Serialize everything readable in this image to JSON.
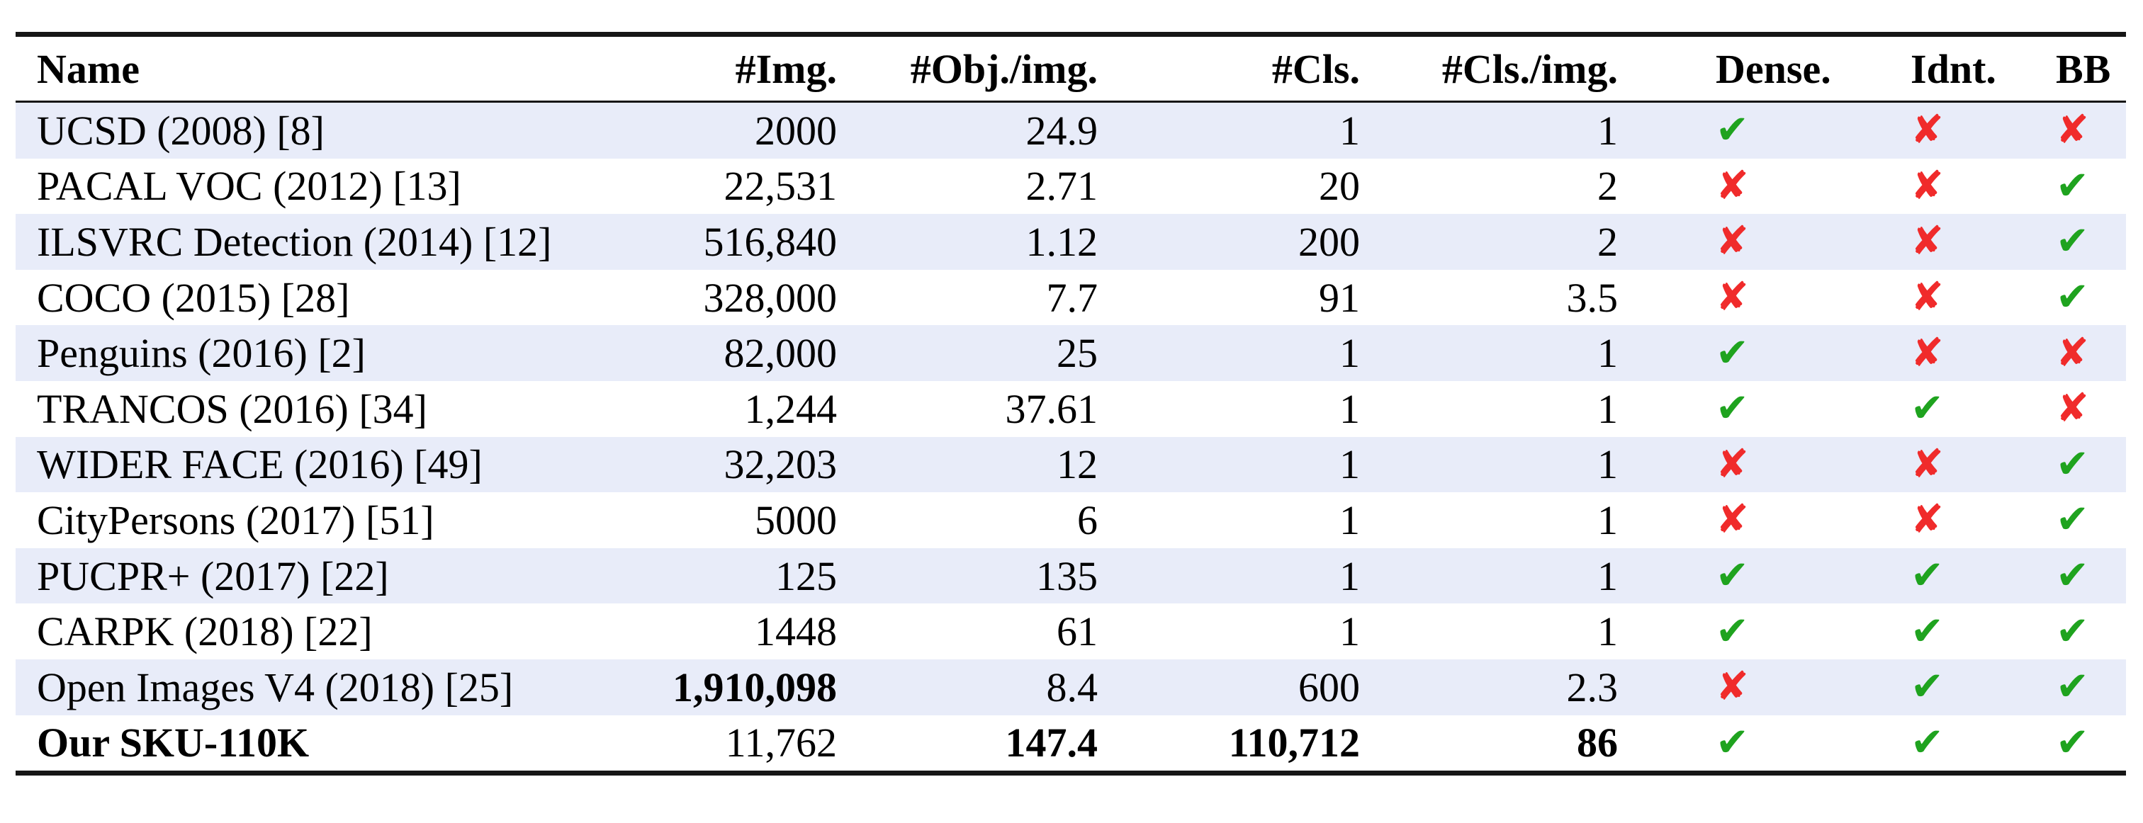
{
  "table": {
    "columns": [
      {
        "id": "name",
        "label": "Name",
        "align": "al"
      },
      {
        "id": "img",
        "label": "#Img.",
        "align": "ar"
      },
      {
        "id": "obj-per-img",
        "label": "#Obj./img.",
        "align": "ar"
      },
      {
        "id": "cls",
        "label": "#Cls.",
        "align": "ar"
      },
      {
        "id": "cls-per-img",
        "label": "#Cls./img.",
        "align": "ar-big"
      },
      {
        "id": "dense",
        "label": "Dense.",
        "align": "amark"
      },
      {
        "id": "idnt",
        "label": "Idnt.",
        "align": "amark"
      },
      {
        "id": "bb",
        "label": "BB",
        "align": "amark"
      }
    ],
    "rows": [
      {
        "name": "UCSD (2008) [8]",
        "name_bold": false,
        "striped": true,
        "values": [
          {
            "text": "2000",
            "bold": false
          },
          {
            "text": "24.9",
            "bold": false
          },
          {
            "text": "1",
            "bold": false
          },
          {
            "text": "1",
            "bold": false
          }
        ],
        "flags": [
          "check",
          "cross",
          "cross"
        ]
      },
      {
        "name": "PACAL VOC (2012) [13]",
        "name_bold": false,
        "striped": false,
        "values": [
          {
            "text": "22,531",
            "bold": false
          },
          {
            "text": "2.71",
            "bold": false
          },
          {
            "text": "20",
            "bold": false
          },
          {
            "text": "2",
            "bold": false
          }
        ],
        "flags": [
          "cross",
          "cross",
          "check"
        ]
      },
      {
        "name": "ILSVRC Detection (2014) [12]",
        "name_bold": false,
        "striped": true,
        "values": [
          {
            "text": "516,840",
            "bold": false
          },
          {
            "text": "1.12",
            "bold": false
          },
          {
            "text": "200",
            "bold": false
          },
          {
            "text": "2",
            "bold": false
          }
        ],
        "flags": [
          "cross",
          "cross",
          "check"
        ]
      },
      {
        "name": "COCO (2015) [28]",
        "name_bold": false,
        "striped": false,
        "values": [
          {
            "text": "328,000",
            "bold": false
          },
          {
            "text": "7.7",
            "bold": false
          },
          {
            "text": "91",
            "bold": false
          },
          {
            "text": "3.5",
            "bold": false
          }
        ],
        "flags": [
          "cross",
          "cross",
          "check"
        ]
      },
      {
        "name": "Penguins (2016) [2]",
        "name_bold": false,
        "striped": true,
        "values": [
          {
            "text": "82,000",
            "bold": false
          },
          {
            "text": "25",
            "bold": false
          },
          {
            "text": "1",
            "bold": false
          },
          {
            "text": "1",
            "bold": false
          }
        ],
        "flags": [
          "check",
          "cross",
          "cross"
        ]
      },
      {
        "name": "TRANCOS (2016) [34]",
        "name_bold": false,
        "striped": false,
        "values": [
          {
            "text": "1,244",
            "bold": false
          },
          {
            "text": "37.61",
            "bold": false
          },
          {
            "text": "1",
            "bold": false
          },
          {
            "text": "1",
            "bold": false
          }
        ],
        "flags": [
          "check",
          "check",
          "cross"
        ]
      },
      {
        "name": "WIDER FACE (2016) [49]",
        "name_bold": false,
        "striped": true,
        "values": [
          {
            "text": "32,203",
            "bold": false
          },
          {
            "text": "12",
            "bold": false
          },
          {
            "text": "1",
            "bold": false
          },
          {
            "text": "1",
            "bold": false
          }
        ],
        "flags": [
          "cross",
          "cross",
          "check"
        ]
      },
      {
        "name": "CityPersons (2017) [51]",
        "name_bold": false,
        "striped": false,
        "values": [
          {
            "text": "5000",
            "bold": false
          },
          {
            "text": "6",
            "bold": false
          },
          {
            "text": "1",
            "bold": false
          },
          {
            "text": "1",
            "bold": false
          }
        ],
        "flags": [
          "cross",
          "cross",
          "check"
        ]
      },
      {
        "name": "PUCPR+ (2017) [22]",
        "name_bold": false,
        "striped": true,
        "values": [
          {
            "text": "125",
            "bold": false
          },
          {
            "text": "135",
            "bold": false
          },
          {
            "text": "1",
            "bold": false
          },
          {
            "text": "1",
            "bold": false
          }
        ],
        "flags": [
          "check",
          "check",
          "check"
        ]
      },
      {
        "name": "CARPK (2018) [22]",
        "name_bold": false,
        "striped": false,
        "values": [
          {
            "text": "1448",
            "bold": false
          },
          {
            "text": "61",
            "bold": false
          },
          {
            "text": "1",
            "bold": false
          },
          {
            "text": "1",
            "bold": false
          }
        ],
        "flags": [
          "check",
          "check",
          "check"
        ]
      },
      {
        "name": "Open Images V4 (2018) [25]",
        "name_bold": false,
        "striped": true,
        "values": [
          {
            "text": "1,910,098",
            "bold": true
          },
          {
            "text": "8.4",
            "bold": false
          },
          {
            "text": "600",
            "bold": false
          },
          {
            "text": "2.3",
            "bold": false
          }
        ],
        "flags": [
          "cross",
          "check",
          "check"
        ]
      },
      {
        "name": "Our SKU-110K",
        "name_bold": true,
        "striped": false,
        "values": [
          {
            "text": "11,762",
            "bold": false
          },
          {
            "text": "147.4",
            "bold": true
          },
          {
            "text": "110,712",
            "bold": true
          },
          {
            "text": "86",
            "bold": true
          }
        ],
        "flags": [
          "check",
          "check",
          "check"
        ]
      }
    ],
    "symbols": {
      "check": "✔",
      "cross": "✘"
    },
    "colors": {
      "check_green": "#1fa31f",
      "cross_red": "#f02b2b",
      "stripe": "#e8ecf9",
      "rule": "#161616"
    }
  },
  "chart_data": {
    "type": "table",
    "title": "Comparison of object detection / counting datasets",
    "columns": [
      "Name",
      "#Img.",
      "#Obj./img.",
      "#Cls.",
      "#Cls./img.",
      "Dense.",
      "Idnt.",
      "BB"
    ],
    "rows": [
      [
        "UCSD (2008) [8]",
        "2000",
        "24.9",
        "1",
        "1",
        "yes",
        "no",
        "no"
      ],
      [
        "PACAL VOC (2012) [13]",
        "22,531",
        "2.71",
        "20",
        "2",
        "no",
        "no",
        "yes"
      ],
      [
        "ILSVRC Detection (2014) [12]",
        "516,840",
        "1.12",
        "200",
        "2",
        "no",
        "no",
        "yes"
      ],
      [
        "COCO (2015) [28]",
        "328,000",
        "7.7",
        "91",
        "3.5",
        "no",
        "no",
        "yes"
      ],
      [
        "Penguins (2016) [2]",
        "82,000",
        "25",
        "1",
        "1",
        "yes",
        "no",
        "no"
      ],
      [
        "TRANCOS (2016) [34]",
        "1,244",
        "37.61",
        "1",
        "1",
        "yes",
        "yes",
        "no"
      ],
      [
        "WIDER FACE (2016) [49]",
        "32,203",
        "12",
        "1",
        "1",
        "no",
        "no",
        "yes"
      ],
      [
        "CityPersons (2017) [51]",
        "5000",
        "6",
        "1",
        "1",
        "no",
        "no",
        "yes"
      ],
      [
        "PUCPR+ (2017) [22]",
        "125",
        "135",
        "1",
        "1",
        "yes",
        "yes",
        "yes"
      ],
      [
        "CARPK (2018) [22]",
        "1448",
        "61",
        "1",
        "1",
        "yes",
        "yes",
        "yes"
      ],
      [
        "Open Images V4 (2018) [25]",
        "1,910,098",
        "8.4",
        "600",
        "2.3",
        "no",
        "yes",
        "yes"
      ],
      [
        "Our SKU-110K",
        "11,762",
        "147.4",
        "110,712",
        "86",
        "yes",
        "yes",
        "yes"
      ]
    ]
  }
}
